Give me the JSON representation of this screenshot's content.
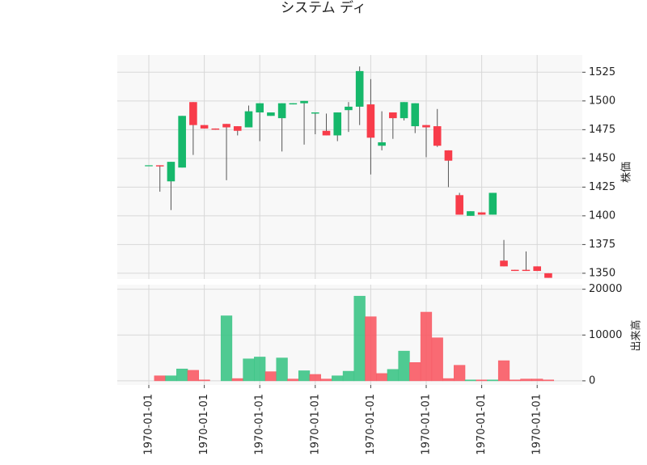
{
  "chart_data": {
    "type": "candlestick",
    "title": "システム ディ",
    "ylabel": "株価",
    "categories": [
      "1970-01-01",
      null,
      null,
      null,
      null,
      "1970-01-01",
      null,
      null,
      null,
      null,
      "1970-01-01",
      null,
      null,
      null,
      null,
      "1970-01-01",
      null,
      null,
      null,
      null,
      "1970-01-01",
      null,
      null,
      null,
      null,
      "1970-01-01",
      null,
      null,
      null,
      null,
      "1970-01-01",
      null,
      null,
      null,
      null,
      "1970-01-01",
      null
    ],
    "open": [
      1444,
      1444,
      1430,
      1442,
      1499,
      1479,
      1476,
      1480,
      1478,
      1477,
      1490,
      1487,
      1485,
      1497,
      1498,
      1489,
      1474,
      1470,
      1492,
      1495,
      1497,
      1461,
      1490,
      1485,
      1478,
      1479,
      1478,
      1457,
      1418,
      1400,
      1403,
      1401,
      1361,
      1353,
      1353,
      1356,
      1350
    ],
    "high": [
      1444,
      1444,
      1447,
      1487,
      1499,
      1479,
      1476,
      1480,
      1478,
      1496,
      1498,
      1490,
      1498,
      1498,
      1500,
      1490,
      1489,
      1490,
      1499,
      1530,
      1519,
      1491,
      1490,
      1499,
      1498,
      1479,
      1493,
      1457,
      1420,
      1404,
      1403,
      1420,
      1379,
      1353,
      1369,
      1356,
      1350
    ],
    "low": [
      1444,
      1421,
      1405,
      1442,
      1453,
      1476,
      1475,
      1431,
      1470,
      1477,
      1465,
      1487,
      1456,
      1497,
      1462,
      1471,
      1470,
      1465,
      1473,
      1479,
      1436,
      1457,
      1467,
      1483,
      1472,
      1451,
      1460,
      1425,
      1401,
      1400,
      1401,
      1401,
      1356,
      1352,
      1352,
      1352,
      1346
    ],
    "close": [
      1444,
      1443,
      1447,
      1487,
      1479,
      1476,
      1475,
      1477,
      1474,
      1491,
      1498,
      1490,
      1498,
      1498,
      1500,
      1490,
      1470,
      1490,
      1495,
      1526,
      1468,
      1464,
      1485,
      1499,
      1498,
      1477,
      1461,
      1448,
      1401,
      1404,
      1401,
      1420,
      1356,
      1352,
      1352,
      1352,
      1346
    ],
    "up_color": "#16b86b",
    "down_color": "#f83c4a",
    "ylim": [
      1345,
      1540
    ],
    "yticks": [
      1350,
      1375,
      1400,
      1425,
      1450,
      1475,
      1500,
      1525
    ],
    "grid": true,
    "volume": {
      "ylabel": "出来高",
      "values": [
        0,
        1100,
        1100,
        2600,
        2300,
        200,
        0,
        14200,
        500,
        4800,
        5200,
        2000,
        5000,
        400,
        2200,
        1400,
        400,
        1100,
        2100,
        18500,
        14000,
        1600,
        2500,
        6500,
        4000,
        15000,
        9400,
        500,
        3400,
        200,
        200,
        200,
        4400,
        200,
        400,
        400,
        200
      ],
      "colors": [
        "#f85a64",
        "#f85a64",
        "#3cc486",
        "#3cc486",
        "#f85a64",
        "#f85a64",
        "#f85a64",
        "#3cc486",
        "#f85a64",
        "#3cc486",
        "#3cc486",
        "#f85a64",
        "#3cc486",
        "#f85a64",
        "#3cc486",
        "#f85a64",
        "#f85a64",
        "#3cc486",
        "#3cc486",
        "#3cc486",
        "#f85a64",
        "#f85a64",
        "#3cc486",
        "#3cc486",
        "#f85a64",
        "#f85a64",
        "#f85a64",
        "#f85a64",
        "#f85a64",
        "#3cc486",
        "#f85a64",
        "#3cc486",
        "#f85a64",
        "#f85a64",
        "#f85a64",
        "#f85a64",
        "#f85a64"
      ],
      "ylim": [
        -900,
        21000
      ],
      "yticks": [
        0,
        10000,
        20000
      ]
    }
  }
}
